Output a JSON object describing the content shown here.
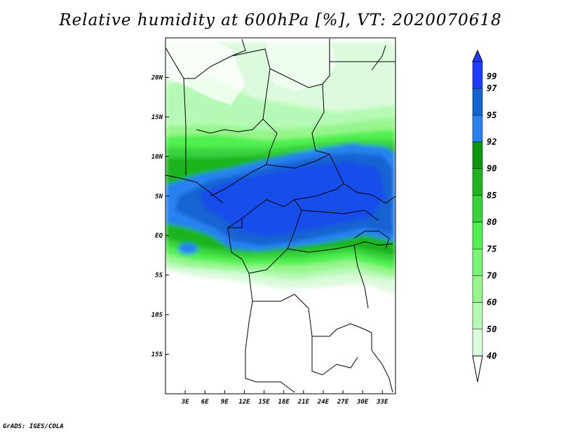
{
  "title": "Relative humidity at 600hPa [%], VT: 2020070618",
  "credit": "GrADS: IGES/COLA",
  "map": {
    "lon_range": [
      0,
      35
    ],
    "lat_range": [
      -20,
      25
    ],
    "lon_labels": [
      "3E",
      "6E",
      "9E",
      "12E",
      "15E",
      "18E",
      "21E",
      "24E",
      "27E",
      "30E",
      "33E"
    ],
    "lat_labels": [
      "20N",
      "15N",
      "10N",
      "5N",
      "EQ",
      "5S",
      "10S",
      "15S"
    ],
    "field": "relative humidity 600hPa"
  },
  "colorbar": {
    "levels": [
      "99",
      "97",
      "95",
      "92",
      "90",
      "85",
      "80",
      "75",
      "70",
      "60",
      "50",
      "40"
    ],
    "colors": [
      "#1e3cff",
      "#1464d2",
      "#2882f0",
      "#0f960f",
      "#1fb41e",
      "#37d23c",
      "#50f050",
      "#78f573",
      "#96f58c",
      "#b4fab4",
      "#dcfadc",
      "#ffffff"
    ]
  }
}
